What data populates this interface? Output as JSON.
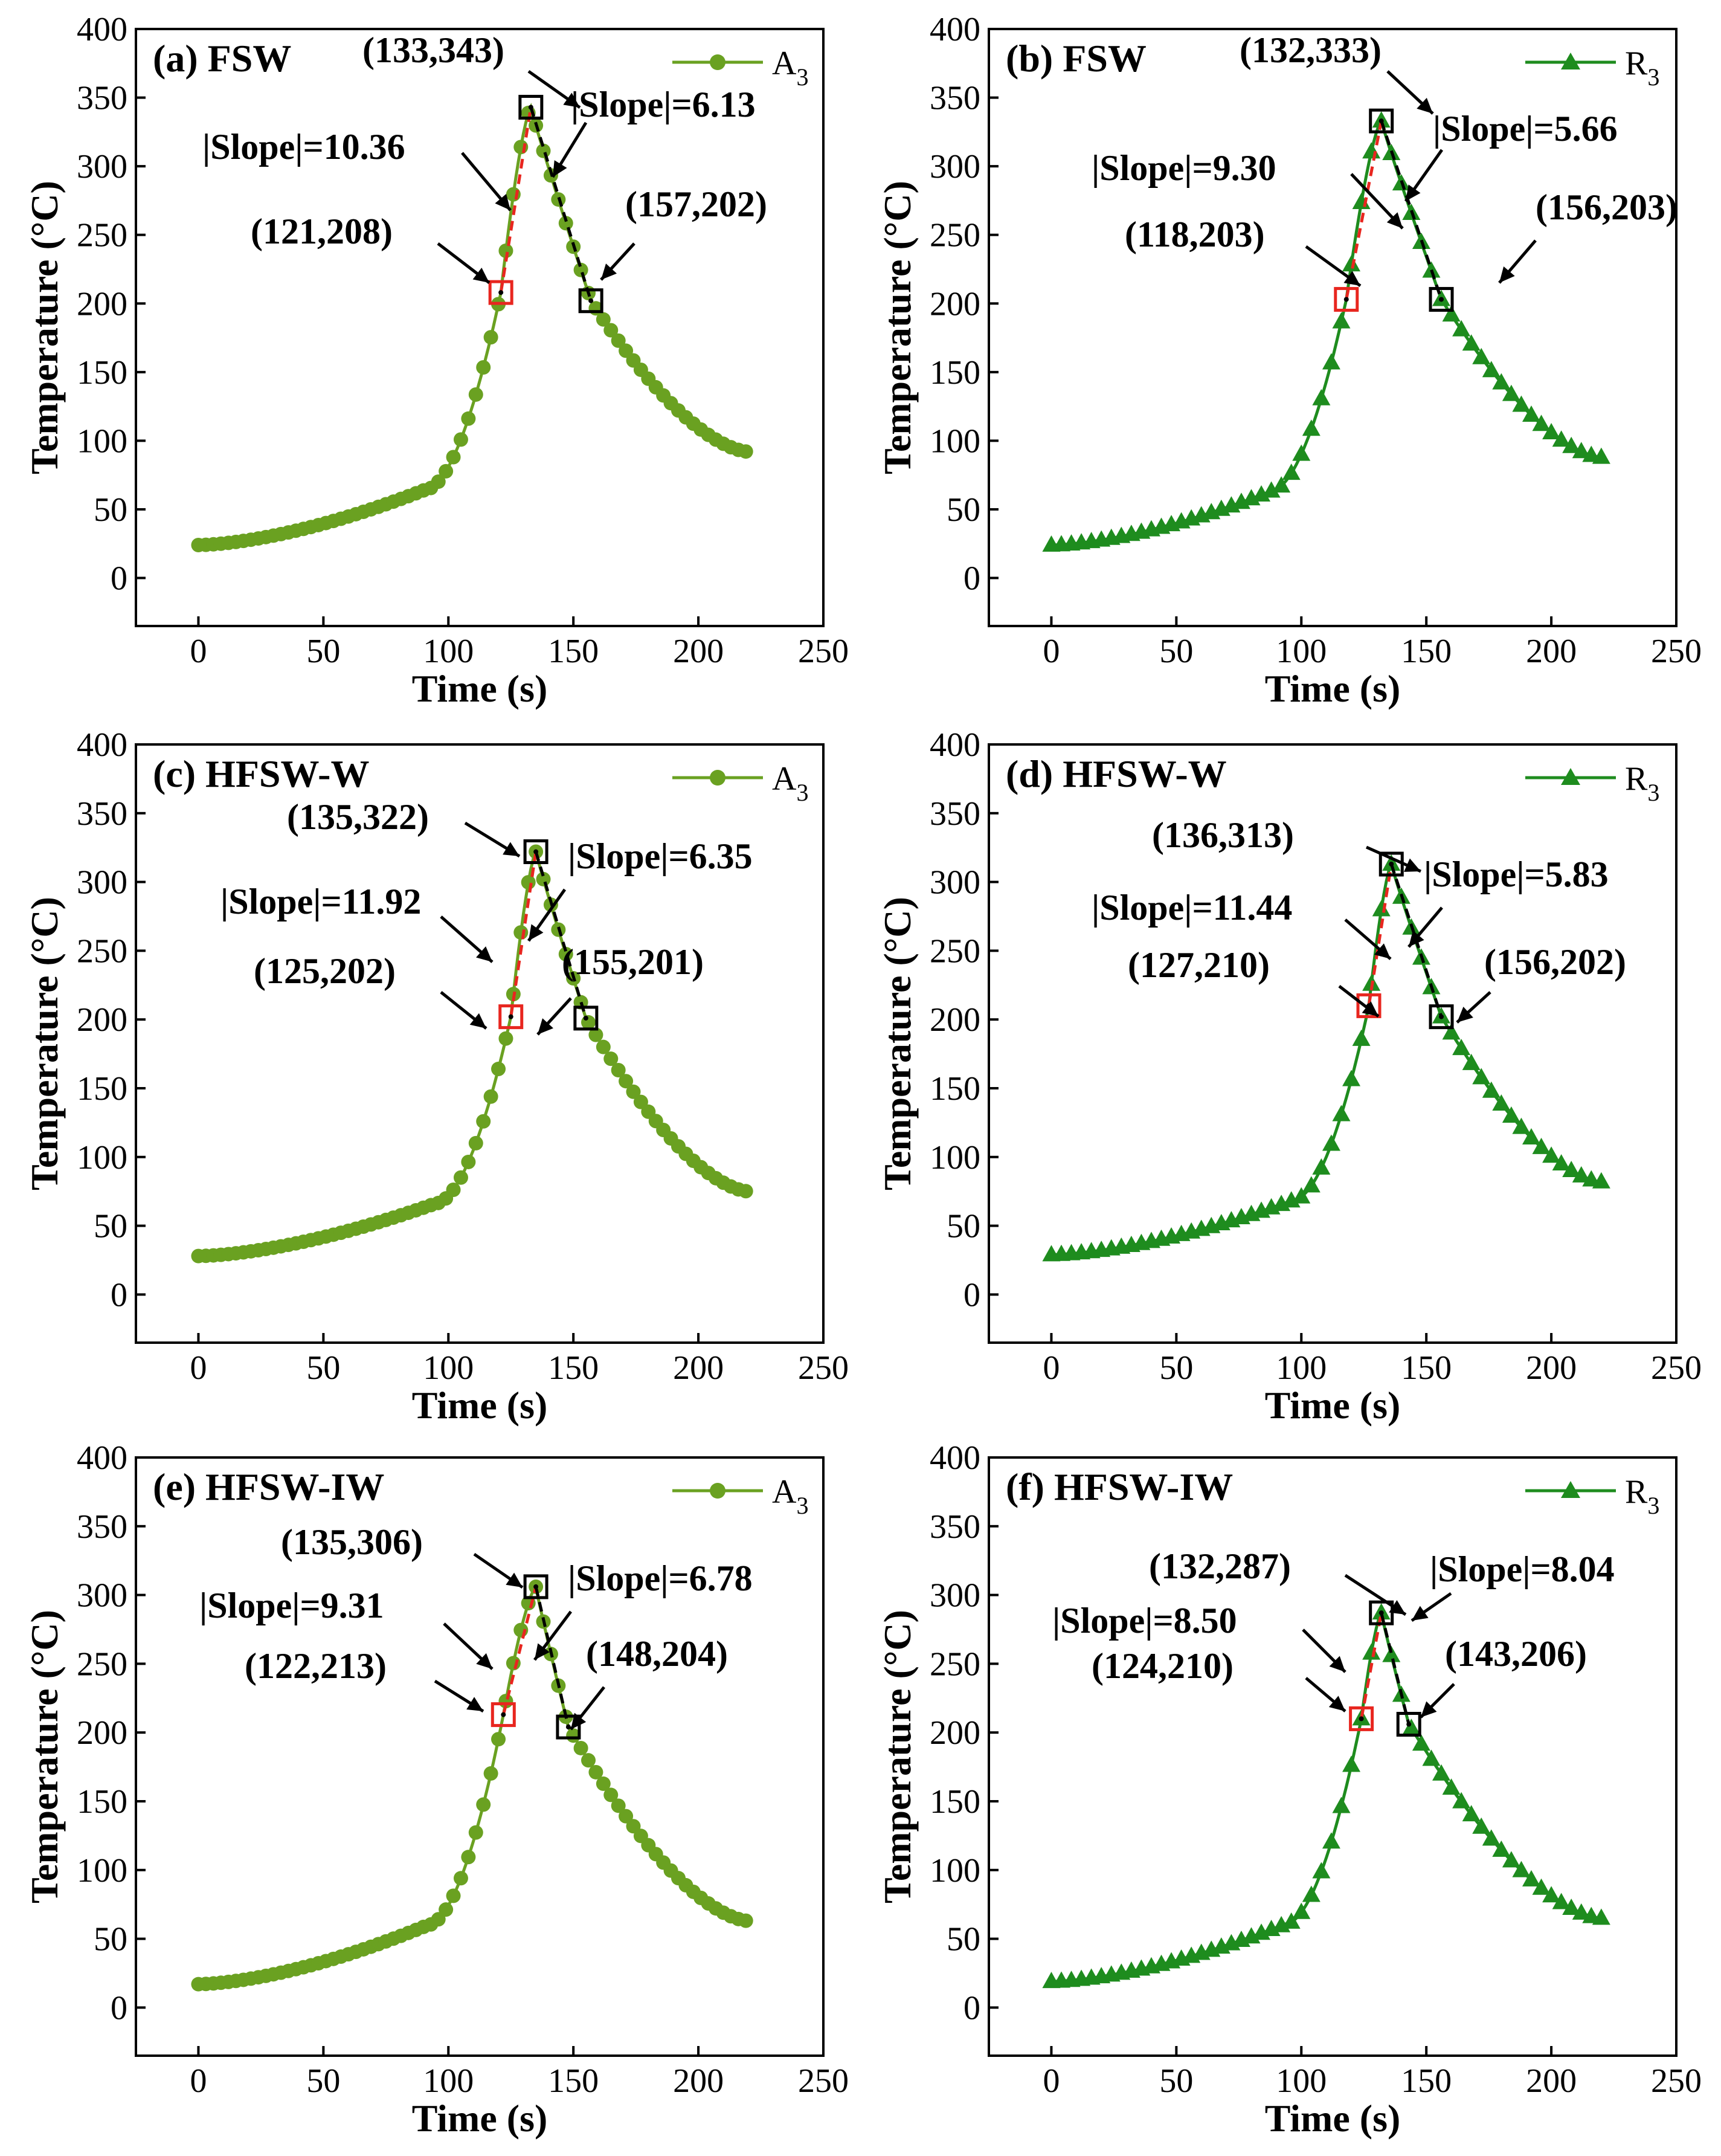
{
  "chart_data": [
    {
      "type": "line",
      "panel": "(a) FSW",
      "series": [
        {
          "name": "A",
          "subscript": "3",
          "marker": "circle",
          "color": "#6aa121"
        }
      ],
      "xlabel": "Time (s)",
      "ylabel": "Temperature (°C)",
      "xlim": [
        -25,
        250
      ],
      "ylim": [
        -35,
        400
      ],
      "xticks": [
        0,
        50,
        100,
        150,
        200,
        250
      ],
      "yticks": [
        0,
        50,
        100,
        150,
        200,
        250,
        300,
        350,
        400
      ],
      "peak": {
        "t": 133,
        "T": 343
      },
      "base": 24,
      "end": 92,
      "lower_point": {
        "t": 121,
        "T": 208
      },
      "upper_point": {
        "t": 157,
        "T": 202
      },
      "labels": {
        "peak": "(133,343)",
        "lower": "(121,208)",
        "upper": "(157,202)",
        "slope_left": "|Slope|=10.36",
        "slope_right": "|Slope|=6.13"
      }
    },
    {
      "type": "line",
      "panel": "(b) FSW",
      "series": [
        {
          "name": "R",
          "subscript": "3",
          "marker": "triangle",
          "color": "#1e8c1e"
        }
      ],
      "xlabel": "Time (s)",
      "ylabel": "Temperature (°C)",
      "xlim": [
        -25,
        250
      ],
      "ylim": [
        -35,
        400
      ],
      "xticks": [
        0,
        50,
        100,
        150,
        200,
        250
      ],
      "yticks": [
        0,
        50,
        100,
        150,
        200,
        250,
        300,
        350,
        400
      ],
      "peak": {
        "t": 132,
        "T": 333
      },
      "base": 24,
      "end": 88,
      "lower_point": {
        "t": 118,
        "T": 203
      },
      "upper_point": {
        "t": 156,
        "T": 203
      },
      "labels": {
        "peak": "(132,333)",
        "lower": "(118,203)",
        "upper": "(156,203)",
        "slope_left": "|Slope|=9.30",
        "slope_right": "|Slope|=5.66"
      }
    },
    {
      "type": "line",
      "panel": "(c) HFSW-W",
      "series": [
        {
          "name": "A",
          "subscript": "3",
          "marker": "circle",
          "color": "#6aa121"
        }
      ],
      "xlabel": "Time (s)",
      "ylabel": "Temperature (°C)",
      "xlim": [
        -25,
        250
      ],
      "ylim": [
        -35,
        400
      ],
      "xticks": [
        0,
        50,
        100,
        150,
        200,
        250
      ],
      "yticks": [
        0,
        50,
        100,
        150,
        200,
        250,
        300,
        350,
        400
      ],
      "peak": {
        "t": 135,
        "T": 322
      },
      "base": 28,
      "end": 75,
      "lower_point": {
        "t": 125,
        "T": 202
      },
      "upper_point": {
        "t": 155,
        "T": 201
      },
      "labels": {
        "peak": "(135,322)",
        "lower": "(125,202)",
        "upper": "(155,201)",
        "slope_left": "|Slope|=11.92",
        "slope_right": "|Slope|=6.35"
      }
    },
    {
      "type": "line",
      "panel": "(d) HFSW-W",
      "series": [
        {
          "name": "R",
          "subscript": "3",
          "marker": "triangle",
          "color": "#1e8c1e"
        }
      ],
      "xlabel": "Time (s)",
      "ylabel": "Temperature (°C)",
      "xlim": [
        -25,
        250
      ],
      "ylim": [
        -35,
        400
      ],
      "xticks": [
        0,
        50,
        100,
        150,
        200,
        250
      ],
      "yticks": [
        0,
        50,
        100,
        150,
        200,
        250,
        300,
        350,
        400
      ],
      "peak": {
        "t": 136,
        "T": 313
      },
      "base": 29,
      "end": 82,
      "lower_point": {
        "t": 127,
        "T": 210
      },
      "upper_point": {
        "t": 156,
        "T": 202
      },
      "labels": {
        "peak": "(136,313)",
        "lower": "(127,210)",
        "upper": "(156,202)",
        "slope_left": "|Slope|=11.44",
        "slope_right": "|Slope|=5.83"
      }
    },
    {
      "type": "line",
      "panel": "(e) HFSW-IW",
      "series": [
        {
          "name": "A",
          "subscript": "3",
          "marker": "circle",
          "color": "#6aa121"
        }
      ],
      "xlabel": "Time (s)",
      "ylabel": "Temperature (°C)",
      "xlim": [
        -25,
        250
      ],
      "ylim": [
        -35,
        400
      ],
      "xticks": [
        0,
        50,
        100,
        150,
        200,
        250
      ],
      "yticks": [
        0,
        50,
        100,
        150,
        200,
        250,
        300,
        350,
        400
      ],
      "peak": {
        "t": 135,
        "T": 306
      },
      "base": 17,
      "end": 63,
      "lower_point": {
        "t": 122,
        "T": 213
      },
      "upper_point": {
        "t": 148,
        "T": 204
      },
      "labels": {
        "peak": "(135,306)",
        "lower": "(122,213)",
        "upper": "(148,204)",
        "slope_left": "|Slope|=9.31",
        "slope_right": "|Slope|=6.78"
      }
    },
    {
      "type": "line",
      "panel": "(f) HFSW-IW",
      "series": [
        {
          "name": "R",
          "subscript": "3",
          "marker": "triangle",
          "color": "#1e8c1e"
        }
      ],
      "xlabel": "Time (s)",
      "ylabel": "Temperature (°C)",
      "xlim": [
        -25,
        250
      ],
      "ylim": [
        -35,
        400
      ],
      "xticks": [
        0,
        50,
        100,
        150,
        200,
        250
      ],
      "yticks": [
        0,
        50,
        100,
        150,
        200,
        250,
        300,
        350,
        400
      ],
      "peak": {
        "t": 132,
        "T": 287
      },
      "base": 19,
      "end": 65,
      "lower_point": {
        "t": 124,
        "T": 210
      },
      "upper_point": {
        "t": 143,
        "T": 206
      },
      "labels": {
        "peak": "(132,287)",
        "lower": "(124,210)",
        "upper": "(143,206)",
        "slope_left": "|Slope|=8.50",
        "slope_right": "|Slope|=8.04"
      }
    }
  ]
}
